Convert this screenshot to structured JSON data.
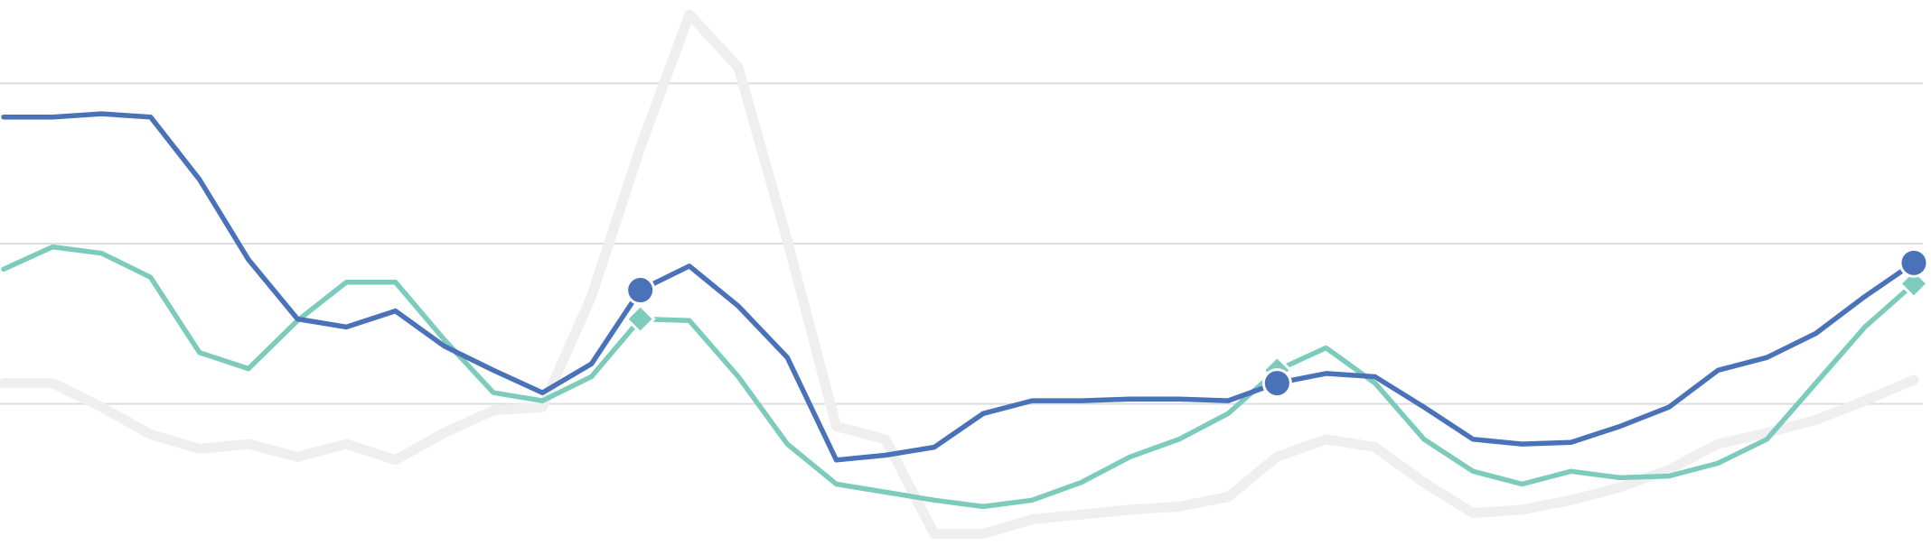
{
  "chart_data": {
    "type": "line",
    "ylim": [
      12,
      352
    ],
    "yticks": [
      100,
      200,
      300
    ],
    "grid": true,
    "grid_color": "#dddddd",
    "highlight": [
      13,
      26,
      39
    ],
    "series": [
      {
        "color": "#efefef",
        "width": 11,
        "values": [
          113,
          113,
          98,
          81,
          72,
          75,
          67,
          75,
          65,
          82,
          96,
          98,
          167,
          260,
          343,
          310,
          202,
          86,
          78,
          19,
          19,
          28,
          31,
          34,
          36,
          42,
          67,
          78,
          73,
          51,
          32,
          34,
          40,
          48,
          59,
          75,
          82,
          90,
          102,
          115
        ]
      },
      {
        "color": "#7ccbbc",
        "width": 5.5,
        "marker": "diamond",
        "values": [
          184,
          198,
          194,
          179,
          132,
          122,
          152,
          176,
          176,
          140,
          107,
          102,
          117,
          153,
          152,
          117,
          75,
          50,
          45,
          40,
          36,
          40,
          51,
          67,
          78,
          94,
          121,
          135,
          113,
          78,
          58,
          50,
          58,
          54,
          55,
          63,
          78,
          113,
          148,
          175
        ]
      },
      {
        "color": "#4a72b8",
        "width": 5.5,
        "marker": "circle",
        "values": [
          279,
          279,
          281,
          279,
          240,
          190,
          153,
          148,
          158,
          136,
          121,
          107,
          125,
          171,
          186,
          161,
          129,
          65,
          68,
          73,
          94,
          102,
          102,
          103,
          103,
          102,
          113,
          119,
          117,
          98,
          78,
          75,
          76,
          86,
          98,
          121,
          129,
          144,
          167,
          188
        ]
      }
    ]
  }
}
